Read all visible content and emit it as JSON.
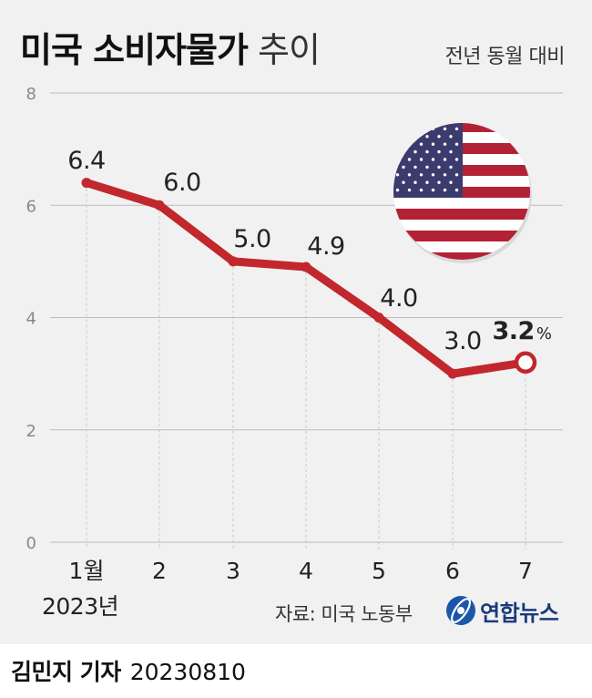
{
  "title_bold": "미국 소비자물가",
  "title_light": " 추이",
  "subtitle": "전년 동월 대비",
  "source": "자료: 미국 노동부",
  "agency": "연합뉴스",
  "reporter": "김민지 기자",
  "date": "20230810",
  "colors": {
    "line": "#c1272d",
    "grid": "#bcbcbc",
    "panel": "#f1f1f1"
  },
  "chart_data": {
    "type": "line",
    "title": "미국 소비자물가 추이",
    "subtitle": "전년 동월 대비",
    "categories": [
      "1월",
      "2",
      "3",
      "4",
      "5",
      "6",
      "7"
    ],
    "x_sublabel": "2023년",
    "values": [
      6.4,
      6.0,
      5.0,
      4.9,
      4.0,
      3.0,
      3.2
    ],
    "value_labels": [
      "6.4",
      "6.0",
      "5.0",
      "4.9",
      "4.0",
      "3.0",
      "3.2"
    ],
    "last_value_unit": "%",
    "ylim": [
      0,
      8
    ],
    "yticks": [
      0,
      2,
      4,
      6,
      8
    ],
    "grid": true,
    "highlight_last": true,
    "decoration": "us-flag"
  }
}
